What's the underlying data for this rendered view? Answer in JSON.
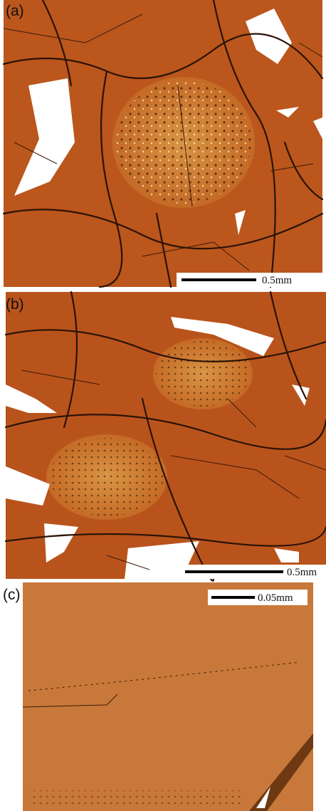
{
  "panels": [
    {
      "label": "(a)",
      "scale": "0.5mm"
    },
    {
      "label": "(b)",
      "scale": "0.5mm"
    },
    {
      "label": "(c)",
      "scale": "0.05mm"
    }
  ]
}
